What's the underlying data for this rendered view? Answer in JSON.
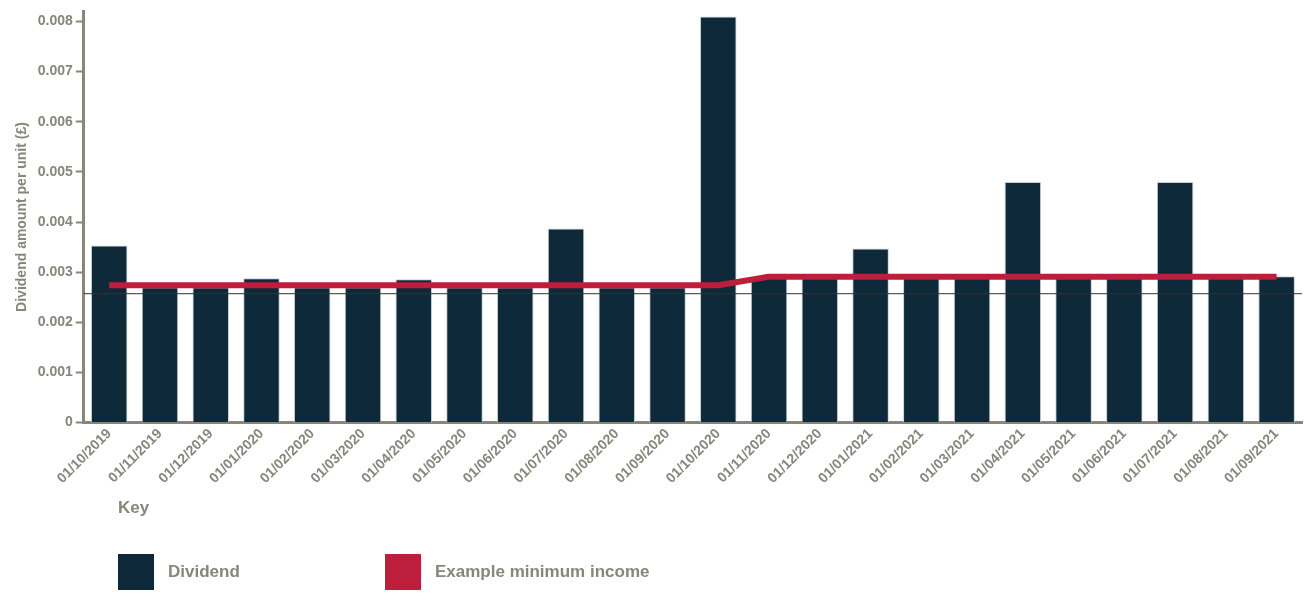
{
  "chart_data": {
    "type": "bar",
    "ylabel": "Dividend amount per unit (£)",
    "legend_title": "Key",
    "legend": "bottom left",
    "grid": false,
    "categories": [
      "01/10/2019",
      "01/11/2019",
      "01/12/2019",
      "01/01/2020",
      "01/02/2020",
      "01/03/2020",
      "01/04/2020",
      "01/05/2020",
      "01/06/2020",
      "01/07/2020",
      "01/08/2020",
      "01/09/2020",
      "01/10/2020",
      "01/11/2020",
      "01/12/2020",
      "01/01/2021",
      "01/02/2021",
      "01/03/2021",
      "01/04/2021",
      "01/05/2021",
      "01/06/2021",
      "01/07/2021",
      "01/08/2021",
      "01/09/2021"
    ],
    "ylim": [
      0,
      0.0082
    ],
    "yticks": [
      0,
      0.001,
      0.002,
      0.003,
      0.004,
      0.005,
      0.006,
      0.007,
      0.008
    ],
    "series": [
      {
        "name": "Dividend",
        "color": "#0e2a3a",
        "values": [
          0.00353,
          0.0027,
          0.0027,
          0.00288,
          0.0027,
          0.0027,
          0.00286,
          0.0027,
          0.0027,
          0.00387,
          0.0027,
          0.0027,
          0.0081,
          0.0029,
          0.0029,
          0.00347,
          0.0029,
          0.0029,
          0.0048,
          0.0029,
          0.0029,
          0.0048,
          0.0029,
          0.00292
        ]
      },
      {
        "name": "Example minimum income",
        "type": "line",
        "color": "#bc1e3b",
        "marker": "none",
        "values": [
          0.00274,
          0.00274,
          0.00274,
          0.00274,
          0.00274,
          0.00274,
          0.00274,
          0.00274,
          0.00274,
          0.00274,
          0.00274,
          0.00274,
          0.00274,
          0.00291,
          0.00291,
          0.00291,
          0.00291,
          0.00291,
          0.00291,
          0.00291,
          0.00291,
          0.00291,
          0.00291,
          0.00291
        ]
      }
    ],
    "ref_lines": [
      {
        "axis": "y",
        "value": 0.00257,
        "color": "#333333"
      }
    ]
  }
}
